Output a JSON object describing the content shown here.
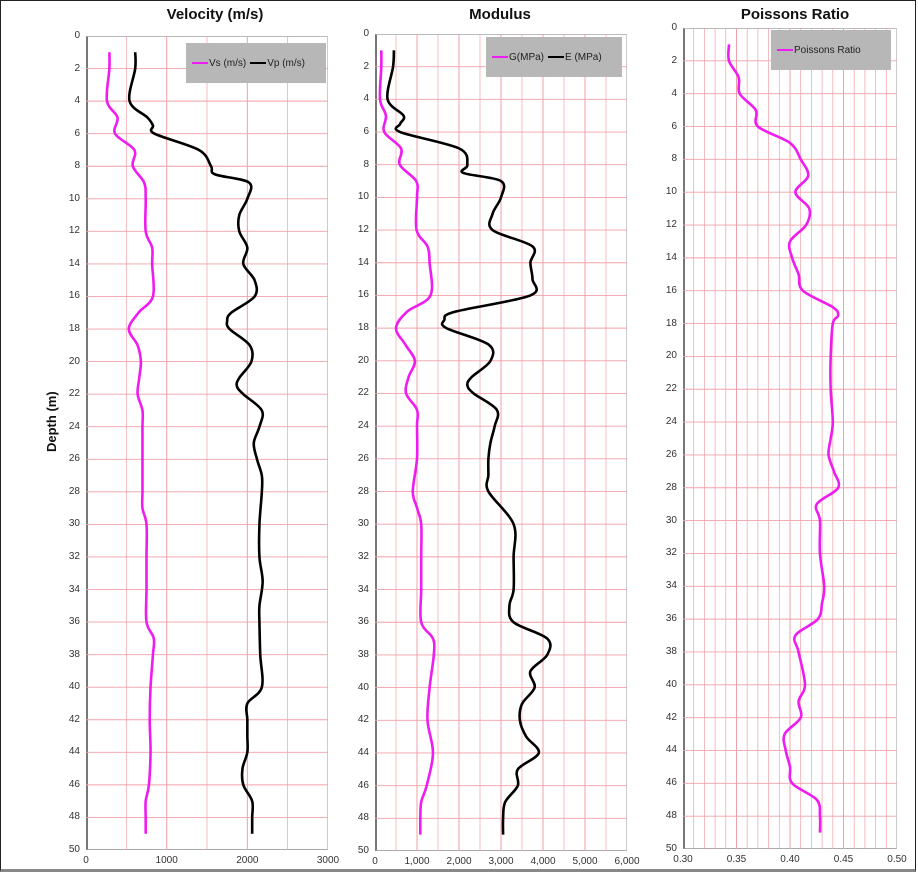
{
  "y_axis": {
    "label": "Depth (m)",
    "ticks": [
      "0",
      "2",
      "4",
      "6",
      "8",
      "10",
      "12",
      "14",
      "16",
      "18",
      "20",
      "22",
      "24",
      "26",
      "28",
      "30",
      "32",
      "34",
      "36",
      "38",
      "40",
      "42",
      "44",
      "46",
      "48",
      "50"
    ]
  },
  "colors": {
    "magenta": "#ee1cf0",
    "black": "#000000",
    "grid": "#f0a0a8",
    "legend_bg": "#b7b7b7"
  },
  "panels": [
    {
      "title": "Velocity (m/s)",
      "x_ticks": [
        "0",
        "1000",
        "2000",
        "3000"
      ],
      "legend": [
        "Vs  (m/s)",
        "Vp (m/s)"
      ]
    },
    {
      "title": "Modulus",
      "x_ticks": [
        "0",
        "1,000",
        "2,000",
        "3,000",
        "4,000",
        "5,000",
        "6,000"
      ],
      "legend": [
        "G(MPa)",
        "E (MPa)"
      ]
    },
    {
      "title": "Poissons Ratio",
      "x_ticks": [
        "0.30",
        "0.35",
        "0.40",
        "0.45",
        "0.50"
      ],
      "legend": [
        "Poissons Ratio"
      ]
    }
  ],
  "chart_data": [
    {
      "type": "line",
      "title": "Velocity (m/s)",
      "xlabel": "",
      "ylabel": "Depth (m)",
      "xlim": [
        0,
        3000
      ],
      "ylim": [
        50,
        0
      ],
      "y_inverted": true,
      "grid": true,
      "legend_position": "top-right",
      "series": [
        {
          "name": "Vs  (m/s)",
          "color": "#ee1cf0",
          "depth": [
            1,
            2,
            4,
            5,
            6,
            7,
            8,
            9,
            10,
            12,
            13,
            14,
            16,
            17,
            18,
            19,
            20,
            21,
            22,
            23,
            24,
            26,
            28,
            29,
            30,
            32,
            34,
            36,
            37,
            38,
            40,
            42,
            44,
            46,
            47,
            48,
            49
          ],
          "values": [
            290,
            290,
            260,
            390,
            360,
            600,
            580,
            720,
            740,
            740,
            820,
            820,
            830,
            650,
            530,
            640,
            680,
            660,
            640,
            700,
            700,
            700,
            700,
            700,
            750,
            750,
            750,
            750,
            840,
            830,
            800,
            790,
            800,
            780,
            740,
            740,
            740
          ]
        },
        {
          "name": "Vp (m/s)",
          "color": "#000000",
          "depth": [
            1,
            2,
            4,
            5,
            5.5,
            6,
            7,
            8,
            8.5,
            9,
            10,
            11,
            12,
            13,
            14,
            15,
            16,
            17,
            17.5,
            18,
            19,
            20,
            21,
            21.5,
            22,
            23,
            24,
            25,
            26,
            27,
            28,
            30,
            32,
            33.5,
            35,
            36,
            38,
            40,
            41,
            42,
            43,
            44,
            45,
            46,
            47,
            48,
            49
          ],
          "values": [
            610,
            610,
            540,
            760,
            830,
            850,
            1400,
            1550,
            1600,
            2020,
            2000,
            1900,
            1900,
            2000,
            1950,
            2090,
            2090,
            1800,
            1750,
            1780,
            2030,
            2050,
            1900,
            1870,
            1950,
            2180,
            2150,
            2080,
            2120,
            2180,
            2180,
            2150,
            2150,
            2190,
            2150,
            2150,
            2160,
            2180,
            2000,
            2000,
            2000,
            2000,
            1940,
            1950,
            2060,
            2060,
            2060
          ]
        }
      ]
    },
    {
      "type": "line",
      "title": "Modulus",
      "xlabel": "",
      "ylabel": "Depth (m)",
      "xlim": [
        0,
        6000
      ],
      "ylim": [
        50,
        0
      ],
      "y_inverted": true,
      "grid": true,
      "legend_position": "top-right",
      "series": [
        {
          "name": "G(MPa)",
          "color": "#ee1cf0",
          "depth": [
            1,
            2,
            4,
            5,
            6,
            7,
            8,
            9,
            10,
            12,
            13,
            14,
            16,
            17,
            18,
            19,
            20,
            21,
            22,
            23,
            24,
            26,
            28,
            29,
            30,
            32,
            34,
            36,
            37,
            38,
            40,
            42,
            44,
            46,
            47,
            48,
            49
          ],
          "values": [
            150,
            150,
            120,
            260,
            220,
            620,
            590,
            980,
            1000,
            990,
            1250,
            1300,
            1320,
            760,
            500,
            720,
            950,
            800,
            740,
            1000,
            1000,
            1000,
            900,
            1000,
            1100,
            1100,
            1100,
            1100,
            1380,
            1400,
            1300,
            1250,
            1380,
            1230,
            1100,
            1080,
            1080
          ]
        },
        {
          "name": "E (MPa)",
          "color": "#000000",
          "depth": [
            1,
            2,
            4,
            5,
            5.5,
            6,
            7,
            8,
            8.5,
            9,
            10,
            11,
            12,
            13,
            14,
            15,
            16,
            17,
            17.5,
            18,
            19,
            20,
            21,
            21.5,
            22,
            23,
            24,
            25,
            26,
            27,
            28,
            30,
            32,
            34,
            35,
            36,
            37,
            38,
            39,
            40,
            41,
            42,
            43,
            44,
            45,
            46,
            47,
            48,
            49
          ],
          "values": [
            450,
            430,
            300,
            680,
            600,
            600,
            2000,
            2200,
            2100,
            3000,
            3000,
            2800,
            2800,
            3750,
            3700,
            3750,
            3700,
            1900,
            1650,
            1700,
            2700,
            2750,
            2300,
            2200,
            2350,
            2900,
            2850,
            2750,
            2700,
            2700,
            2700,
            3300,
            3300,
            3300,
            3200,
            3300,
            4100,
            4100,
            3700,
            3800,
            3500,
            3450,
            3600,
            3900,
            3400,
            3400,
            3100,
            3050,
            3050
          ]
        }
      ]
    },
    {
      "type": "line",
      "title": "Poissons Ratio",
      "xlabel": "",
      "ylabel": "Depth (m)",
      "xlim": [
        0.3,
        0.5
      ],
      "ylim": [
        50,
        0
      ],
      "y_inverted": true,
      "grid": true,
      "legend_position": "top-right",
      "series": [
        {
          "name": "Poissons Ratio",
          "color": "#ee1cf0",
          "depth": [
            1,
            2,
            3,
            4,
            5,
            6,
            7,
            8,
            9,
            10,
            11,
            12,
            13,
            14,
            15,
            16,
            17,
            17.5,
            18,
            20,
            22,
            24,
            25,
            26,
            27,
            28,
            29,
            30,
            32,
            34,
            35,
            36,
            37,
            38,
            40,
            41,
            42,
            43,
            44,
            45,
            46,
            47,
            48,
            49
          ],
          "values": [
            0.343,
            0.343,
            0.352,
            0.353,
            0.368,
            0.37,
            0.4,
            0.41,
            0.417,
            0.405,
            0.418,
            0.415,
            0.4,
            0.402,
            0.408,
            0.412,
            0.44,
            0.445,
            0.44,
            0.438,
            0.438,
            0.44,
            0.438,
            0.436,
            0.441,
            0.445,
            0.425,
            0.428,
            0.428,
            0.432,
            0.43,
            0.426,
            0.405,
            0.408,
            0.414,
            0.408,
            0.41,
            0.395,
            0.396,
            0.4,
            0.402,
            0.425,
            0.428,
            0.428
          ]
        }
      ]
    }
  ]
}
